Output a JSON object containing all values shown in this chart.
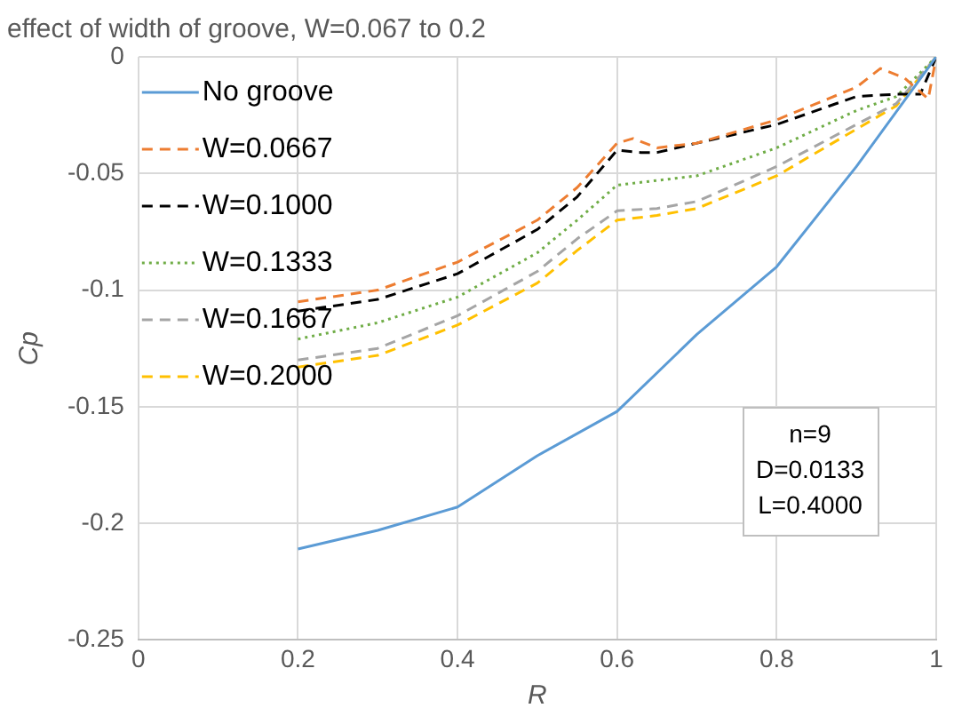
{
  "chart_data": {
    "type": "line",
    "title": "effect of width of groove, W=0.067 to 0.2",
    "xlabel": "R",
    "ylabel": "Cp",
    "xlim": [
      0,
      1
    ],
    "xticks": [
      0,
      0.2,
      0.4,
      0.6,
      0.8,
      1
    ],
    "ylim": [
      -0.25,
      0
    ],
    "yticks": [
      -0.25,
      -0.2,
      -0.15,
      -0.1,
      -0.05,
      0
    ],
    "grid": true,
    "legend": "top left",
    "marker": "none",
    "annotations": [
      "n=9",
      "D=0.0133",
      "L=0.4000"
    ],
    "series": [
      {
        "name": "No groove",
        "color": "#5b9bd5",
        "line_style": "solid",
        "x": [
          0.2,
          0.3,
          0.4,
          0.5,
          0.6,
          0.7,
          0.8,
          0.9,
          1
        ],
        "values": [
          -0.211,
          -0.203,
          -0.193,
          -0.171,
          -0.152,
          -0.119,
          -0.09,
          -0.047,
          0
        ]
      },
      {
        "name": "W=0.0667",
        "color": "#ed7d31",
        "line_style": "dashed",
        "x": [
          0.2,
          0.3,
          0.4,
          0.5,
          0.55,
          0.6,
          0.62,
          0.65,
          0.7,
          0.8,
          0.9,
          0.93,
          0.96,
          0.99,
          1
        ],
        "values": [
          -0.105,
          -0.1,
          -0.088,
          -0.07,
          -0.056,
          -0.037,
          -0.035,
          -0.039,
          -0.037,
          -0.027,
          -0.013,
          -0.005,
          -0.009,
          -0.018,
          0
        ]
      },
      {
        "name": "W=0.1000",
        "color": "#000000",
        "line_style": "dashed",
        "x": [
          0.2,
          0.3,
          0.4,
          0.5,
          0.55,
          0.6,
          0.63,
          0.65,
          0.7,
          0.8,
          0.9,
          0.95,
          0.98,
          1
        ],
        "values": [
          -0.109,
          -0.104,
          -0.093,
          -0.074,
          -0.06,
          -0.04,
          -0.041,
          -0.041,
          -0.037,
          -0.029,
          -0.017,
          -0.016,
          -0.016,
          0
        ]
      },
      {
        "name": "W=0.1333",
        "color": "#70ad47",
        "line_style": "dotted",
        "x": [
          0.2,
          0.3,
          0.4,
          0.5,
          0.55,
          0.6,
          0.7,
          0.8,
          0.9,
          0.95,
          1
        ],
        "values": [
          -0.121,
          -0.114,
          -0.103,
          -0.084,
          -0.07,
          -0.055,
          -0.051,
          -0.039,
          -0.023,
          -0.017,
          0
        ]
      },
      {
        "name": "W=0.1667",
        "color": "#a5a5a5",
        "line_style": "dashed",
        "x": [
          0.2,
          0.3,
          0.4,
          0.5,
          0.55,
          0.6,
          0.65,
          0.7,
          0.8,
          0.9,
          0.95,
          1
        ],
        "values": [
          -0.13,
          -0.125,
          -0.111,
          -0.092,
          -0.078,
          -0.066,
          -0.065,
          -0.062,
          -0.047,
          -0.029,
          -0.02,
          0
        ]
      },
      {
        "name": "W=0.2000",
        "color": "#ffc000",
        "line_style": "dashed",
        "x": [
          0.2,
          0.3,
          0.4,
          0.5,
          0.55,
          0.6,
          0.65,
          0.7,
          0.8,
          0.9,
          0.95,
          1
        ],
        "values": [
          -0.133,
          -0.128,
          -0.115,
          -0.097,
          -0.083,
          -0.07,
          -0.068,
          -0.065,
          -0.051,
          -0.031,
          -0.021,
          0
        ]
      }
    ]
  }
}
